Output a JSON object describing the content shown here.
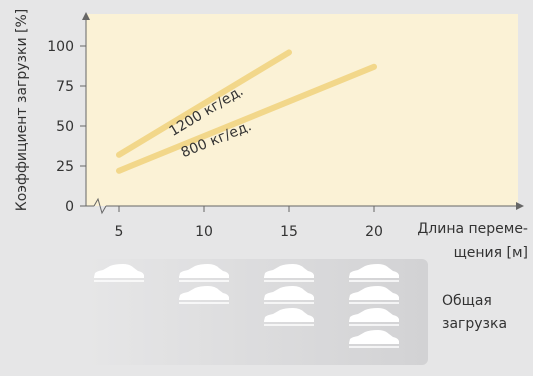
{
  "colors": {
    "background": "#e6e6e7",
    "plot_area": "#fbf2d6",
    "line": "#f2d78a",
    "axis": "#666666",
    "text": "#333333",
    "car": "#ffffff",
    "panel_start": "#e6e6e7",
    "panel_end": "#d2d2d4"
  },
  "chart_data": {
    "type": "line",
    "title": "",
    "xlabel_line1": "Длина переме-",
    "xlabel_line2": "щения [м]",
    "ylabel": "Коэффициент загрузки [%]",
    "xlim": [
      2,
      25
    ],
    "ylim": [
      0,
      115
    ],
    "xticks": [
      5,
      10,
      15,
      20
    ],
    "yticks": [
      0,
      25,
      50,
      75,
      100
    ],
    "axis_break": true,
    "grid": false,
    "series": [
      {
        "name": "1200 кг/ед.",
        "x": [
          5,
          15
        ],
        "y": [
          32,
          96
        ]
      },
      {
        "name": "800 кг/ед.",
        "x": [
          5,
          20
        ],
        "y": [
          22,
          87
        ]
      }
    ]
  },
  "load_panel": {
    "label_line1": "Общая",
    "label_line2": "загрузка",
    "icon": "car-icon",
    "columns": [
      {
        "x": 5,
        "cars": 1
      },
      {
        "x": 10,
        "cars": 2
      },
      {
        "x": 15,
        "cars": 3
      },
      {
        "x": 20,
        "cars": 4
      }
    ]
  }
}
